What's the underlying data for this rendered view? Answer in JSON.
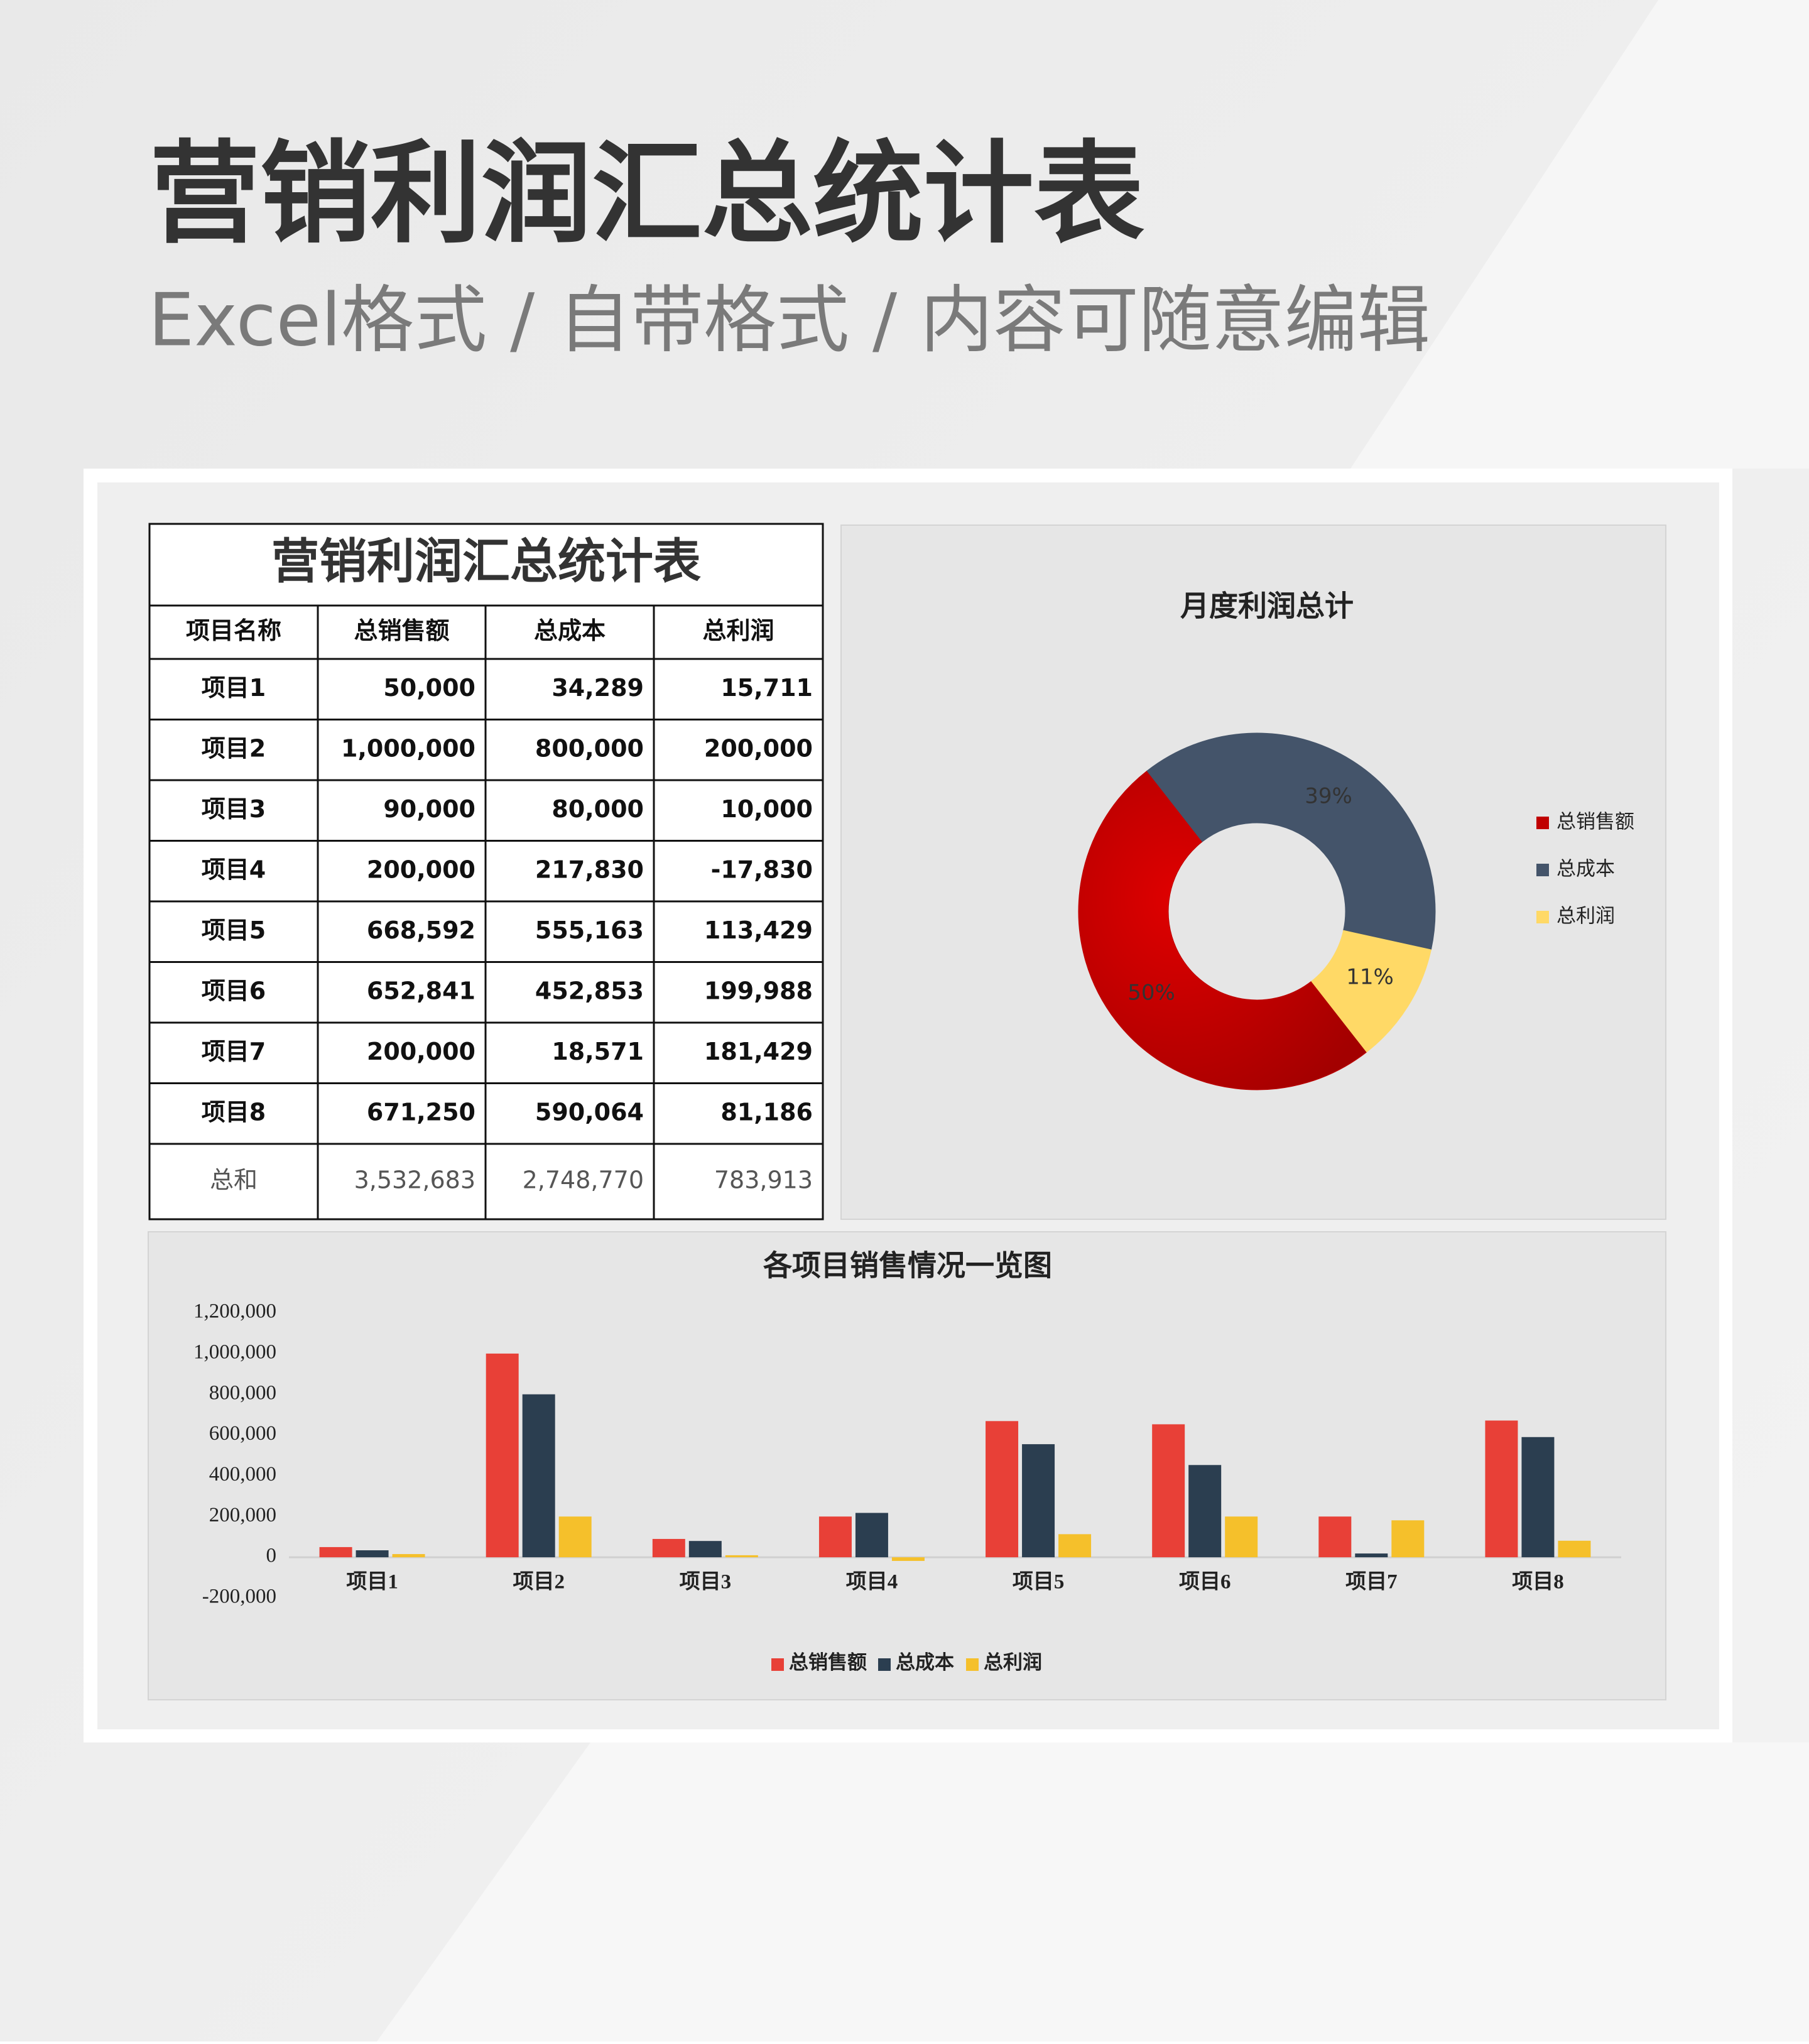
{
  "header": {
    "title": "营销利润汇总统计表",
    "subtitle": "Excel格式 / 自带格式 / 内容可随意编辑"
  },
  "table": {
    "title": "营销利润汇总统计表",
    "columns": [
      "项目名称",
      "总销售额",
      "总成本",
      "总利润"
    ],
    "rows": [
      [
        "项目1",
        "50,000",
        "34,289",
        "15,711"
      ],
      [
        "项目2",
        "1,000,000",
        "800,000",
        "200,000"
      ],
      [
        "项目3",
        "90,000",
        "80,000",
        "10,000"
      ],
      [
        "项目4",
        "200,000",
        "217,830",
        "-17,830"
      ],
      [
        "项目5",
        "668,592",
        "555,163",
        "113,429"
      ],
      [
        "项目6",
        "652,841",
        "452,853",
        "199,988"
      ],
      [
        "项目7",
        "200,000",
        "18,571",
        "181,429"
      ],
      [
        "项目8",
        "671,250",
        "590,064",
        "81,186"
      ],
      [
        "总和",
        "3,532,683",
        "2,748,770",
        "783,913"
      ]
    ]
  },
  "chart_data": [
    {
      "type": "donut",
      "title": "月度利润总计",
      "categories": [
        "总销售额",
        "总成本",
        "总利润"
      ],
      "values": [
        50,
        39,
        11
      ],
      "value_labels": [
        "50%",
        "39%",
        "11%"
      ],
      "colors": [
        "#c00000",
        "#44546a",
        "#ffd966"
      ],
      "legend": "right"
    },
    {
      "type": "bar",
      "title": "各项目销售情况一览图",
      "categories": [
        "项目1",
        "项目2",
        "项目3",
        "项目4",
        "项目5",
        "项目6",
        "项目7",
        "项目8"
      ],
      "series": [
        {
          "name": "总销售额",
          "color": "#e84037",
          "values": [
            50000,
            1000000,
            90000,
            200000,
            668592,
            652841,
            200000,
            671250
          ]
        },
        {
          "name": "总成本",
          "color": "#2b3e50",
          "values": [
            34289,
            800000,
            80000,
            217830,
            555163,
            452853,
            18571,
            590064
          ]
        },
        {
          "name": "总利润",
          "color": "#f5c02b",
          "values": [
            15711,
            200000,
            10000,
            -17830,
            113429,
            199988,
            181429,
            81186
          ]
        }
      ],
      "ylim": [
        -200000,
        1200000
      ],
      "yticks": [
        {
          "value": -200000,
          "label": "-200,000"
        },
        0,
        {
          "value": 200000,
          "label": "200,000"
        },
        {
          "value": 400000,
          "label": "400,000"
        },
        {
          "value": 600000,
          "label": "600,000"
        },
        {
          "value": 800000,
          "label": "800,000"
        },
        {
          "value": 1000000,
          "label": "1,000,000"
        },
        {
          "value": 1200000,
          "label": "1,200,000"
        }
      ],
      "grid": false,
      "legend": "bottom"
    }
  ]
}
